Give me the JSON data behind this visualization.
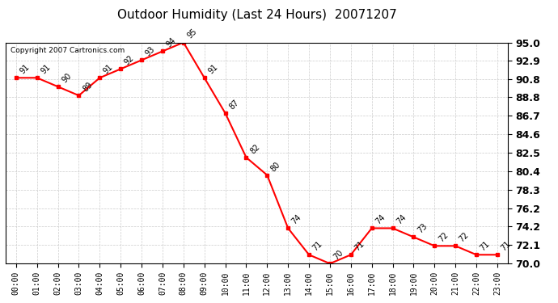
{
  "title": "Outdoor Humidity (Last 24 Hours)  20071207",
  "copyright": "Copyright 2007 Cartronics.com",
  "hours": [
    "00:00",
    "01:00",
    "02:00",
    "03:00",
    "04:00",
    "05:00",
    "06:00",
    "07:00",
    "08:00",
    "09:00",
    "10:00",
    "11:00",
    "12:00",
    "13:00",
    "14:00",
    "15:00",
    "16:00",
    "17:00",
    "18:00",
    "19:00",
    "20:00",
    "21:00",
    "22:00",
    "23:00"
  ],
  "values": [
    91,
    91,
    90,
    89,
    91,
    92,
    93,
    94,
    95,
    91,
    87,
    82,
    80,
    74,
    71,
    70,
    71,
    74,
    74,
    73,
    72,
    72,
    71,
    71
  ],
  "ylim_min": 70.0,
  "ylim_max": 95.0,
  "yticks": [
    70.0,
    72.1,
    74.2,
    76.2,
    78.3,
    80.4,
    82.5,
    84.6,
    86.7,
    88.8,
    90.8,
    92.9,
    95.0
  ],
  "line_color": "red",
  "marker_color": "red",
  "marker": "s",
  "markersize": 3,
  "grid_color": "#cccccc",
  "bg_color": "white",
  "label_fontsize": 7,
  "title_fontsize": 11,
  "ytick_fontsize": 9,
  "xtick_fontsize": 7
}
